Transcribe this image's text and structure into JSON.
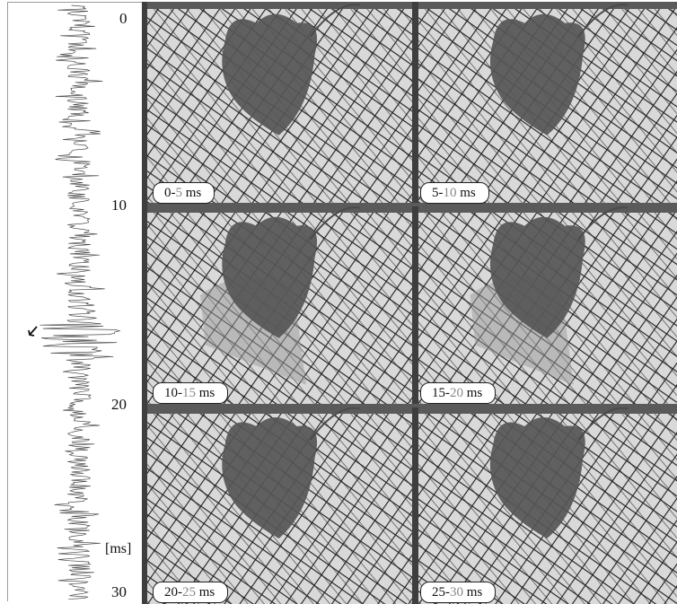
{
  "time_axis": {
    "ticks": [
      "0",
      "10",
      "20",
      "30"
    ],
    "unit": "[ms]"
  },
  "frames": [
    {
      "start": "0-",
      "end": "5",
      "unit": " ms"
    },
    {
      "start": "5-",
      "end": "10",
      "unit": " ms"
    },
    {
      "start": "10-",
      "end": "15",
      "unit": " ms"
    },
    {
      "start": "15-",
      "end": "20",
      "unit": " ms"
    },
    {
      "start": "20-",
      "end": "25",
      "unit": " ms"
    },
    {
      "start": "25-",
      "end": "30",
      "unit": " ms"
    }
  ],
  "colors": {
    "mesh": "#2a2a2a",
    "mesh_background": "#d6d6d6",
    "animal": "#555555",
    "label_end_time": "#888888"
  }
}
